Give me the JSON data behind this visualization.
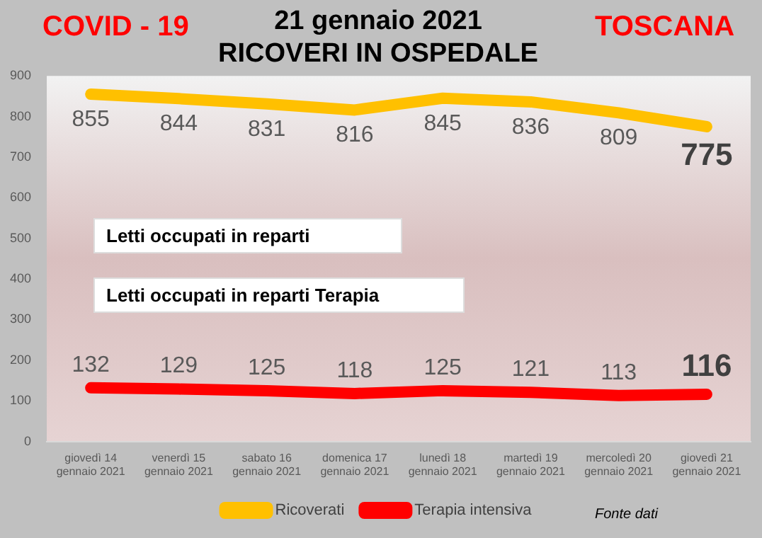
{
  "chart_data": {
    "type": "line",
    "title": "21 gennaio 2021",
    "subtitle": "RICOVERI IN OSPEDALE",
    "categories": [
      "giovedì 14 gennaio 2021",
      "venerdì 15 gennaio 2021",
      "sabato 16 gennaio 2021",
      "domenica 17 gennaio 2021",
      "lunedì 18 gennaio 2021",
      "martedì 19 gennaio 2021",
      "mercoledì 20 gennaio 2021",
      "giovedì 21 gennaio 2021"
    ],
    "series": [
      {
        "name": "Ricoverati",
        "color": "#ffc000",
        "values": [
          855,
          844,
          831,
          816,
          845,
          836,
          809,
          775
        ]
      },
      {
        "name": "Terapia intensiva",
        "color": "#ff0000",
        "values": [
          132,
          129,
          125,
          118,
          125,
          121,
          113,
          116
        ]
      }
    ],
    "ylim": [
      0,
      900
    ],
    "yticks": [
      0,
      100,
      200,
      300,
      400,
      500,
      600,
      700,
      800,
      900
    ],
    "data_labels": true,
    "legend": "bottom",
    "marker": "none",
    "line_style": "solid",
    "annotations": [
      "COVID - 19",
      "TOSCANA",
      "Letti occupati in reparti",
      "Letti occupati in reparti Terapia",
      "Fonte dati"
    ]
  }
}
